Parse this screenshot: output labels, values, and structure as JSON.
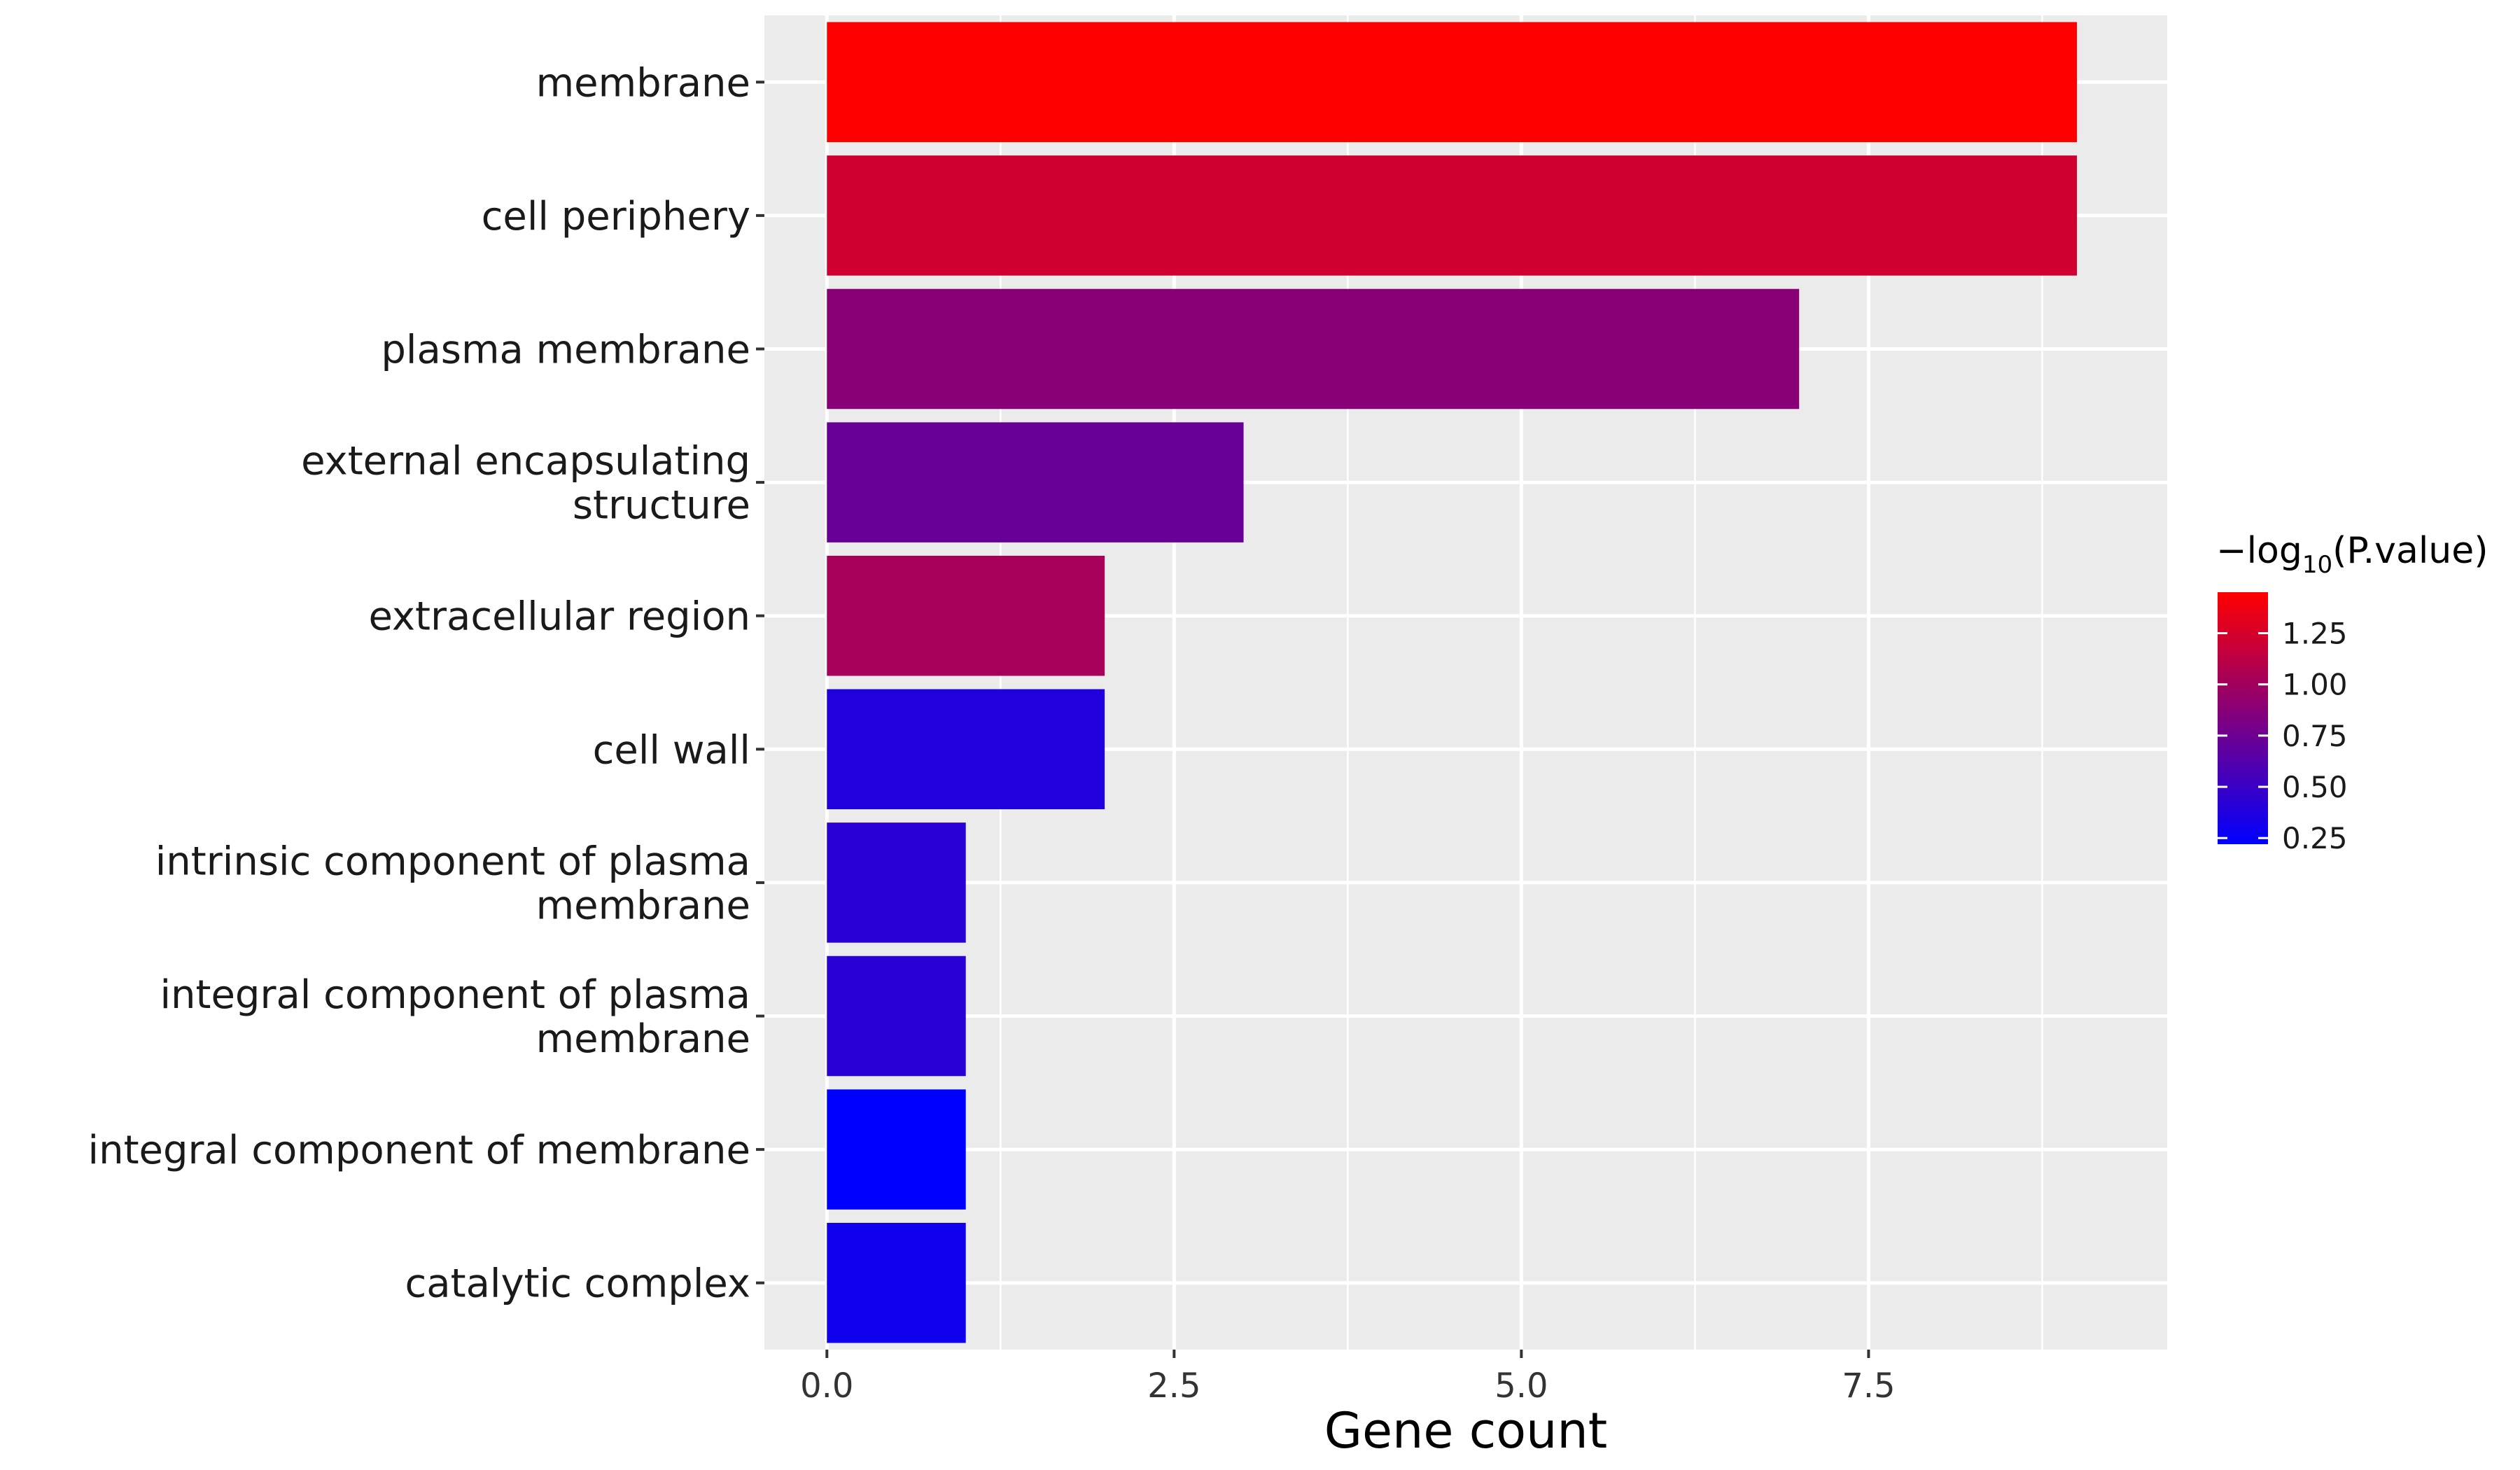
{
  "chart_data": {
    "type": "bar",
    "orientation": "horizontal",
    "title": "",
    "xlabel": "Gene count",
    "ylabel": "",
    "xlim": [
      -0.45,
      9.65
    ],
    "x_ticks": [
      "0.0",
      "2.5",
      "5.0",
      "7.5"
    ],
    "x_tick_values": [
      0,
      2.5,
      5,
      7.5
    ],
    "grid": true,
    "legend_position": "right",
    "categories": [
      "membrane",
      "cell periphery",
      "plasma membrane",
      "external encapsulating structure",
      "extracellular region",
      "cell wall",
      "intrinsic component of plasma membrane",
      "integral component of plasma membrane",
      "integral component of membrane",
      "catalytic complex"
    ],
    "category_lines": [
      [
        "membrane"
      ],
      [
        "cell periphery"
      ],
      [
        "plasma membrane"
      ],
      [
        "external encapsulating",
        "structure"
      ],
      [
        "extracellular region"
      ],
      [
        "cell wall"
      ],
      [
        "intrinsic component of plasma",
        "membrane"
      ],
      [
        "integral component of plasma",
        "membrane"
      ],
      [
        "integral component of membrane"
      ],
      [
        "catalytic complex"
      ]
    ],
    "values": [
      9,
      9,
      7,
      3,
      2,
      2,
      1,
      1,
      1,
      1
    ],
    "color_values": [
      1.45,
      1.22,
      0.88,
      0.72,
      1.02,
      0.38,
      0.42,
      0.42,
      0.22,
      0.3
    ],
    "colorbar": {
      "title_prefix": "−log",
      "title_sub": "10",
      "title_suffix": "(P.value)",
      "range": [
        0.22,
        1.45
      ],
      "low_color": "#0000FF",
      "high_color": "#FF0000",
      "ticks": [
        "1.25",
        "1.00",
        "0.75",
        "0.50",
        "0.25"
      ],
      "tick_values": [
        1.25,
        1.0,
        0.75,
        0.5,
        0.25
      ]
    }
  }
}
